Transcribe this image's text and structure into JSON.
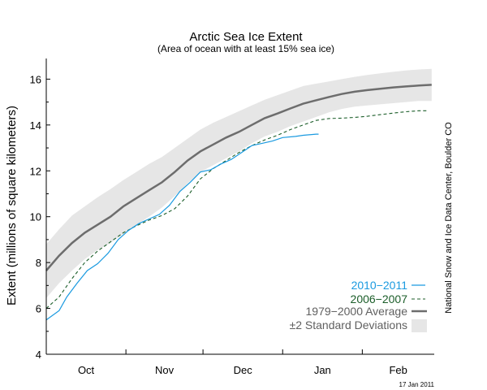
{
  "chart_data": {
    "type": "line",
    "title": "Arctic Sea Ice Extent",
    "subtitle": "(Area of ocean with at least 15% sea ice)",
    "ylabel": "Extent (millions of square kilometers)",
    "xlabel": "",
    "ylim": [
      4,
      16.9
    ],
    "yticks": [
      4,
      6,
      8,
      10,
      12,
      14,
      16
    ],
    "ytick_labels": [
      "4",
      "6",
      "8",
      "10",
      "12",
      "14",
      "16"
    ],
    "x_domain_days": [
      0,
      151
    ],
    "months": [
      {
        "label": "Oct",
        "start": 0,
        "end": 31
      },
      {
        "label": "Nov",
        "start": 31,
        "end": 61
      },
      {
        "label": "Dec",
        "start": 61,
        "end": 92
      },
      {
        "label": "Jan",
        "start": 92,
        "end": 123
      },
      {
        "label": "Feb",
        "start": 123,
        "end": 151
      }
    ],
    "grid": false,
    "legend_position": "bottom-right",
    "series": [
      {
        "name": "2010−2011",
        "color": "#1a9ae0",
        "style": "solid",
        "x": [
          0,
          5,
          8,
          12,
          16,
          20,
          24,
          28,
          32,
          36,
          40,
          44,
          48,
          52,
          56,
          60,
          64,
          68,
          72,
          76,
          80,
          84,
          88,
          92,
          97,
          100,
          105,
          106
        ],
        "y": [
          5.5,
          5.9,
          6.5,
          7.1,
          7.65,
          7.95,
          8.4,
          9.0,
          9.4,
          9.7,
          9.9,
          10.1,
          10.5,
          11.1,
          11.5,
          11.95,
          12.05,
          12.3,
          12.5,
          12.8,
          13.1,
          13.2,
          13.3,
          13.45,
          13.5,
          13.55,
          13.6,
          13.6
        ]
      },
      {
        "name": "2006−2007",
        "color": "#1c5e2a",
        "style": "dashed",
        "x": [
          0,
          5,
          10,
          15,
          20,
          25,
          30,
          35,
          40,
          45,
          50,
          55,
          60,
          65,
          70,
          75,
          80,
          85,
          90,
          95,
          100,
          105,
          110,
          115,
          120,
          125,
          130,
          135,
          140,
          145,
          148
        ],
        "y": [
          6.0,
          6.5,
          7.3,
          8.0,
          8.5,
          8.9,
          9.3,
          9.6,
          9.85,
          10.05,
          10.35,
          10.9,
          11.65,
          12.1,
          12.45,
          12.8,
          13.1,
          13.35,
          13.55,
          13.8,
          14.0,
          14.2,
          14.28,
          14.3,
          14.33,
          14.38,
          14.45,
          14.52,
          14.58,
          14.62,
          14.62
        ]
      },
      {
        "name": "1979−2000 Average",
        "color": "#6d6d6d",
        "style": "solid",
        "x": [
          0,
          5,
          10,
          15,
          20,
          25,
          30,
          35,
          40,
          45,
          50,
          55,
          60,
          65,
          70,
          75,
          80,
          85,
          90,
          95,
          100,
          105,
          110,
          115,
          120,
          125,
          130,
          135,
          140,
          145,
          150
        ],
        "y": [
          7.65,
          8.3,
          8.85,
          9.3,
          9.65,
          10.0,
          10.45,
          10.8,
          11.15,
          11.5,
          11.95,
          12.45,
          12.85,
          13.15,
          13.45,
          13.7,
          14.0,
          14.3,
          14.5,
          14.72,
          14.93,
          15.08,
          15.22,
          15.35,
          15.45,
          15.52,
          15.58,
          15.64,
          15.68,
          15.72,
          15.75
        ]
      }
    ],
    "band": {
      "name": "±2 Standard Deviations",
      "color": "#e6e6e6",
      "x": [
        0,
        5,
        10,
        15,
        20,
        25,
        30,
        35,
        40,
        45,
        50,
        55,
        60,
        65,
        70,
        75,
        80,
        85,
        90,
        95,
        100,
        105,
        110,
        115,
        120,
        125,
        130,
        135,
        140,
        145,
        150
      ],
      "y_upper": [
        8.8,
        9.45,
        10.05,
        10.45,
        10.85,
        11.2,
        11.6,
        11.95,
        12.3,
        12.6,
        13.0,
        13.4,
        13.8,
        14.1,
        14.35,
        14.6,
        14.85,
        15.1,
        15.3,
        15.5,
        15.7,
        15.8,
        15.9,
        16.0,
        16.1,
        16.18,
        16.25,
        16.32,
        16.38,
        16.42,
        16.45
      ],
      "y_lower": [
        6.45,
        7.1,
        7.65,
        8.15,
        8.55,
        8.85,
        9.25,
        9.65,
        10.0,
        10.4,
        10.9,
        11.45,
        11.95,
        12.25,
        12.55,
        12.85,
        13.2,
        13.5,
        13.7,
        13.95,
        14.15,
        14.35,
        14.55,
        14.7,
        14.8,
        14.85,
        14.9,
        14.95,
        15.0,
        15.05,
        15.05
      ]
    },
    "credit": "National Snow and Ice Data Center, Boulder CO",
    "date_stamp": "17 Jan 2011"
  }
}
